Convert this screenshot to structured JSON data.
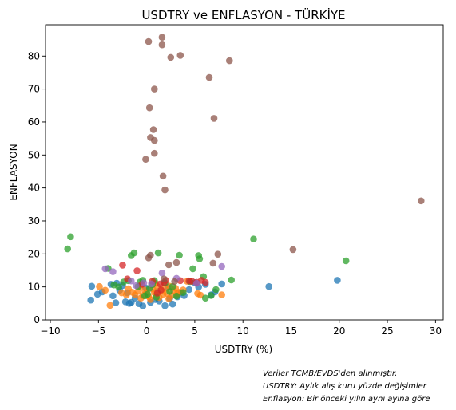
{
  "chart_data": {
    "type": "scatter",
    "title": "USDTRY ve ENFLASYON - TÜRKİYE",
    "xlabel": "USDTRY (%)",
    "ylabel": "ENFLASYON",
    "xlim": [
      -10.5,
      30.8
    ],
    "ylim": [
      0,
      89.5
    ],
    "x_ticks": [
      -10,
      -5,
      0,
      5,
      10,
      15,
      20,
      25,
      30
    ],
    "y_ticks": [
      0,
      10,
      20,
      30,
      40,
      50,
      60,
      70,
      80
    ],
    "x_tick_labels": [
      "−10",
      "−5",
      "0",
      "5",
      "10",
      "15",
      "20",
      "25",
      "30"
    ],
    "y_tick_labels": [
      "0",
      "10",
      "20",
      "30",
      "40",
      "50",
      "60",
      "70",
      "80"
    ],
    "grid": false,
    "marker_alpha": 0.75,
    "series": [
      {
        "color": "#1f77b4",
        "points": [
          [
            -5.7,
            10.2
          ],
          [
            -5.8,
            6.0
          ],
          [
            -5.1,
            7.8
          ],
          [
            -4.6,
            8.5
          ],
          [
            -3.7,
            10.8
          ],
          [
            -3.5,
            7.3
          ],
          [
            -3.2,
            5.2
          ],
          [
            -3.1,
            11.1
          ],
          [
            -2.8,
            9.0
          ],
          [
            -2.5,
            10.4
          ],
          [
            -2.2,
            5.5
          ],
          [
            -1.8,
            5.0
          ],
          [
            -1.6,
            5.3
          ],
          [
            -1.2,
            6.6
          ],
          [
            -0.8,
            4.9
          ],
          [
            -0.4,
            4.2
          ],
          [
            0.4,
            5.3
          ],
          [
            0.9,
            6.2
          ],
          [
            1.3,
            5.7
          ],
          [
            1.9,
            4.3
          ],
          [
            2.4,
            6.5
          ],
          [
            2.7,
            4.8
          ],
          [
            3.2,
            7.0
          ],
          [
            3.9,
            7.4
          ],
          [
            4.4,
            9.2
          ],
          [
            5.4,
            10.0
          ],
          [
            6.1,
            10.8
          ],
          [
            6.7,
            7.6
          ],
          [
            7.1,
            8.5
          ],
          [
            7.8,
            10.9
          ],
          [
            12.7,
            10.1
          ],
          [
            19.8,
            12.0
          ],
          [
            -2.0,
            8.2
          ],
          [
            -0.1,
            9.7
          ],
          [
            1.1,
            8.6
          ],
          [
            2.2,
            9.9
          ],
          [
            3.6,
            8.3
          ],
          [
            5.0,
            11.3
          ]
        ]
      },
      {
        "color": "#ff7f0e",
        "points": [
          [
            -4.9,
            10.1
          ],
          [
            -4.3,
            9.0
          ],
          [
            -3.8,
            4.4
          ],
          [
            -2.6,
            8.2
          ],
          [
            -2.1,
            7.6
          ],
          [
            -1.9,
            9.4
          ],
          [
            -1.5,
            8.4
          ],
          [
            -1.2,
            7.6
          ],
          [
            -0.9,
            8.7
          ],
          [
            -0.6,
            6.6
          ],
          [
            -0.4,
            7.4
          ],
          [
            -0.2,
            9.0
          ],
          [
            0.0,
            8.3
          ],
          [
            0.2,
            7.1
          ],
          [
            0.4,
            6.2
          ],
          [
            0.6,
            9.4
          ],
          [
            0.8,
            8.3
          ],
          [
            1.0,
            7.6
          ],
          [
            1.1,
            10.1
          ],
          [
            1.3,
            6.8
          ],
          [
            1.5,
            8.9
          ],
          [
            1.7,
            7.8
          ],
          [
            1.9,
            9.6
          ],
          [
            2.1,
            8.0
          ],
          [
            2.3,
            6.4
          ],
          [
            2.4,
            10.2
          ],
          [
            2.6,
            7.4
          ],
          [
            2.8,
            8.8
          ],
          [
            3.0,
            9.6
          ],
          [
            3.2,
            7.9
          ],
          [
            3.4,
            8.4
          ],
          [
            3.8,
            9.1
          ],
          [
            4.2,
            11.7
          ],
          [
            5.3,
            8.0
          ],
          [
            5.6,
            7.5
          ],
          [
            7.8,
            7.6
          ],
          [
            -0.7,
            10.3
          ],
          [
            0.9,
            11.1
          ]
        ]
      },
      {
        "color": "#2ca02c",
        "points": [
          [
            -8.2,
            21.5
          ],
          [
            -7.9,
            25.2
          ],
          [
            -4.0,
            15.6
          ],
          [
            -3.4,
            10.6
          ],
          [
            -2.9,
            10.0
          ],
          [
            -2.4,
            11.5
          ],
          [
            -1.9,
            11.9
          ],
          [
            -1.6,
            19.5
          ],
          [
            -1.3,
            20.3
          ],
          [
            -0.9,
            10.1
          ],
          [
            -0.7,
            11.5
          ],
          [
            -0.4,
            12.0
          ],
          [
            -0.2,
            7.3
          ],
          [
            0.1,
            7.8
          ],
          [
            0.3,
            9.6
          ],
          [
            0.6,
            10.7
          ],
          [
            0.8,
            11.9
          ],
          [
            1.2,
            20.3
          ],
          [
            1.9,
            11.2
          ],
          [
            2.4,
            8.6
          ],
          [
            2.7,
            10.1
          ],
          [
            3.1,
            7.2
          ],
          [
            3.4,
            19.6
          ],
          [
            3.8,
            8.3
          ],
          [
            4.5,
            11.6
          ],
          [
            4.8,
            15.5
          ],
          [
            5.4,
            19.5
          ],
          [
            5.5,
            18.5
          ],
          [
            5.9,
            13.1
          ],
          [
            6.1,
            6.6
          ],
          [
            6.7,
            7.4
          ],
          [
            7.2,
            9.2
          ],
          [
            8.8,
            12.1
          ],
          [
            11.1,
            24.5
          ],
          [
            20.7,
            17.9
          ],
          [
            1.0,
            6.9
          ]
        ]
      },
      {
        "color": "#d62728",
        "points": [
          [
            -2.5,
            16.6
          ],
          [
            -2.0,
            12.4
          ],
          [
            -1.0,
            14.9
          ],
          [
            0.6,
            11.7
          ],
          [
            1.1,
            8.1
          ],
          [
            1.5,
            9.1
          ],
          [
            1.8,
            11.3
          ],
          [
            2.0,
            12.0
          ],
          [
            3.5,
            11.9
          ],
          [
            4.4,
            11.8
          ],
          [
            4.7,
            11.7
          ],
          [
            5.2,
            11.4
          ],
          [
            5.7,
            12.0
          ],
          [
            6.1,
            11.4
          ],
          [
            -0.5,
            10.8
          ],
          [
            1.4,
            10.9
          ]
        ]
      },
      {
        "color": "#9467bd",
        "points": [
          [
            -4.3,
            15.5
          ],
          [
            -3.5,
            14.6
          ],
          [
            -1.6,
            11.8
          ],
          [
            -1.1,
            10.4
          ],
          [
            1.6,
            14.2
          ],
          [
            3.1,
            12.6
          ],
          [
            5.2,
            11.1
          ],
          [
            7.8,
            16.2
          ],
          [
            -0.3,
            11.2
          ],
          [
            0.5,
            10.9
          ]
        ]
      },
      {
        "color": "#8c564b",
        "points": [
          [
            0.2,
            84.4
          ],
          [
            1.6,
            85.7
          ],
          [
            1.6,
            83.4
          ],
          [
            2.5,
            79.6
          ],
          [
            3.5,
            80.2
          ],
          [
            8.6,
            78.6
          ],
          [
            6.5,
            73.5
          ],
          [
            0.8,
            70.0
          ],
          [
            7.0,
            61.1
          ],
          [
            0.3,
            64.3
          ],
          [
            0.7,
            57.7
          ],
          [
            0.4,
            55.3
          ],
          [
            0.8,
            54.4
          ],
          [
            0.8,
            50.5
          ],
          [
            -0.1,
            48.7
          ],
          [
            1.7,
            43.6
          ],
          [
            1.9,
            39.4
          ],
          [
            28.5,
            36.1
          ],
          [
            15.2,
            21.3
          ],
          [
            7.4,
            19.9
          ],
          [
            0.4,
            19.6
          ],
          [
            0.2,
            18.8
          ],
          [
            2.3,
            16.7
          ],
          [
            3.1,
            17.4
          ],
          [
            6.9,
            17.2
          ],
          [
            2.9,
            11.6
          ],
          [
            1.8,
            12.4
          ]
        ]
      }
    ]
  },
  "notes": [
    "Veriler TCMB/EVDS'den alınmıştır.",
    "USDTRY: Aylık alış kuru yüzde değişimler",
    "Enflasyon: Bir önceki yılın aynı ayına göre"
  ]
}
